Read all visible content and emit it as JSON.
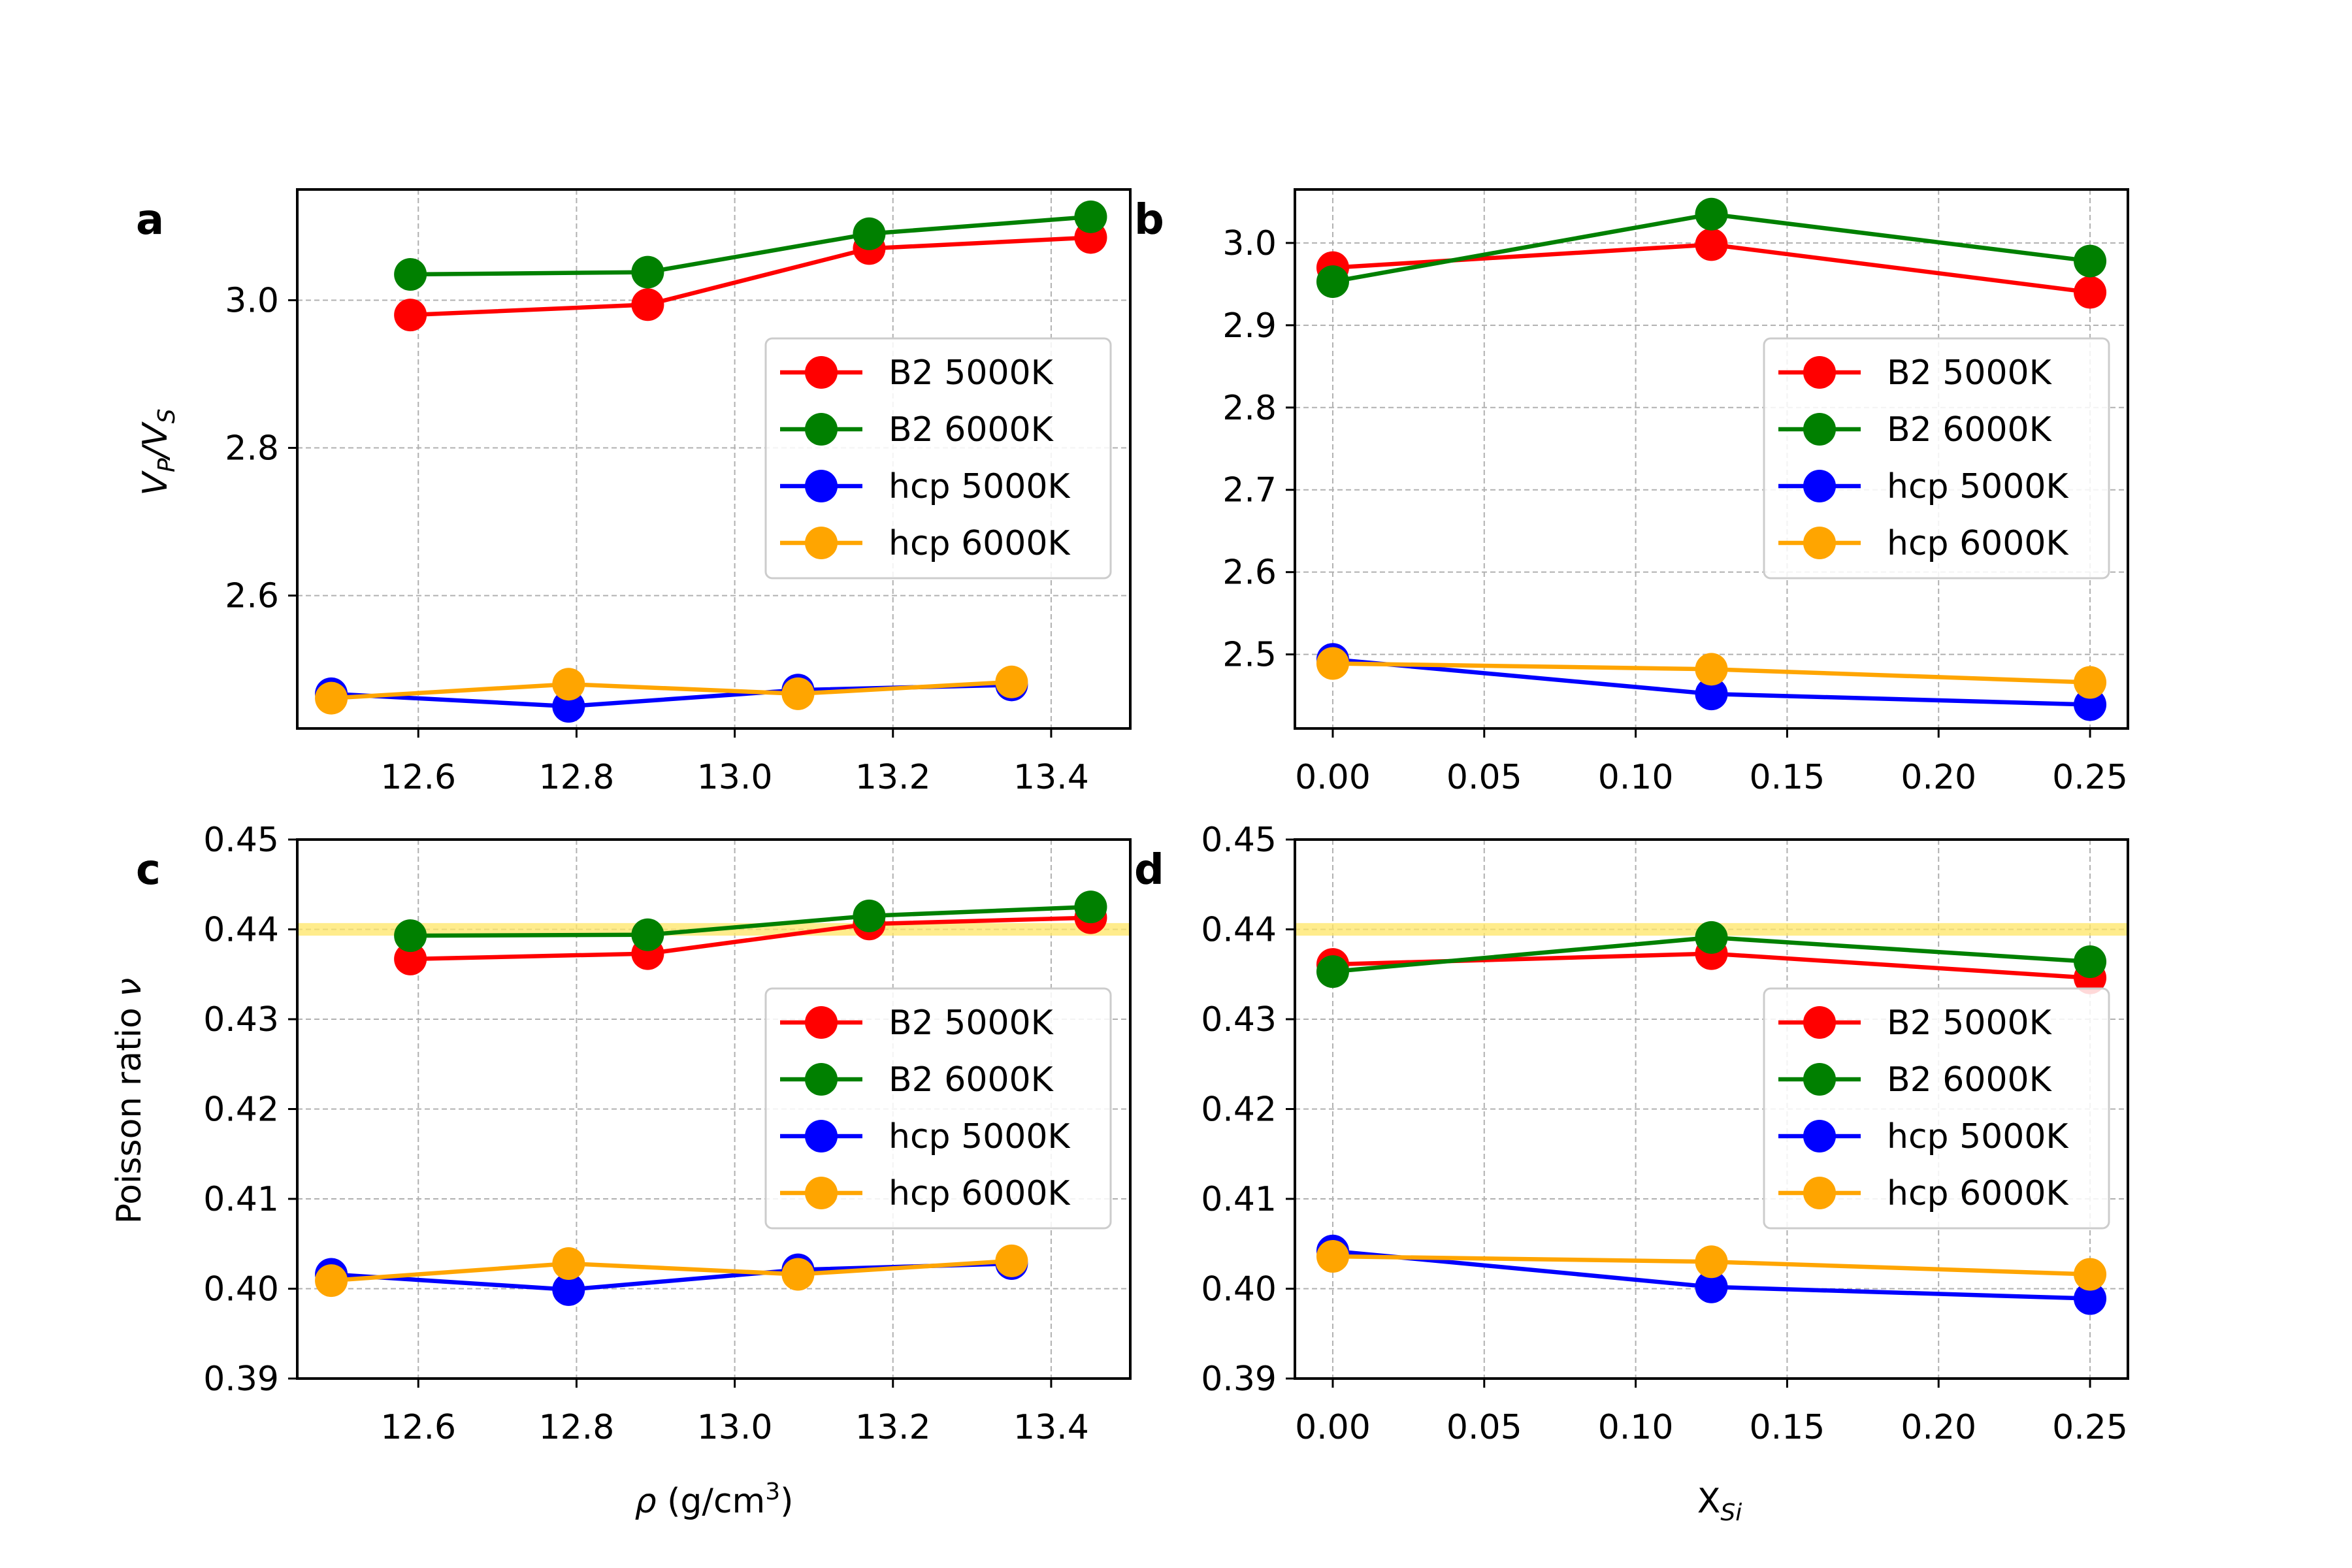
{
  "panel_labels": [
    "a",
    "b",
    "c",
    "d"
  ],
  "axis_labels": {
    "rho_prefix": "ρ",
    "rho_unit": " (g/cm",
    "rho_sup": "3",
    "rho_close": ")",
    "x_main": "X",
    "x_sub": "Si",
    "vpvs_main1": "V",
    "vpvs_sub1": "P",
    "vpvs_slash": "/V",
    "vpvs_sub2": "S",
    "poisson": "Poisson ratio ",
    "poisson_nu": "ν"
  },
  "colors": {
    "B2 5000K": "#ff0000",
    "B2 6000K": "#008000",
    "hcp 5000K": "#0000ff",
    "hcp 6000K": "#ffa500",
    "band": "#ffe666"
  },
  "chart_data": [
    {
      "panel": "a",
      "type": "line",
      "xlabel": "ρ (g/cm3)",
      "ylabel": "VP/VS",
      "xlim": [
        12.447,
        13.5
      ],
      "ylim": [
        2.42,
        3.15
      ],
      "xticks": [
        12.6,
        12.8,
        13.0,
        13.2,
        13.4
      ],
      "xtick_labels": [
        "12.6",
        "12.8",
        "13.0",
        "13.2",
        "13.4"
      ],
      "yticks": [
        2.6,
        2.8,
        3.0
      ],
      "ytick_labels": [
        "2.6",
        "2.8",
        "3.0"
      ],
      "grid": true,
      "legend": "center-right",
      "series": [
        {
          "name": "B2 5000K",
          "x": [
            12.59,
            12.89,
            13.17,
            13.45
          ],
          "y": [
            2.98,
            2.994,
            3.07,
            3.085
          ]
        },
        {
          "name": "B2 6000K",
          "x": [
            12.59,
            12.89,
            13.17,
            13.45
          ],
          "y": [
            3.035,
            3.038,
            3.09,
            3.113
          ]
        },
        {
          "name": "hcp 5000K",
          "x": [
            12.49,
            12.79,
            13.08,
            13.35
          ],
          "y": [
            2.467,
            2.45,
            2.472,
            2.479
          ]
        },
        {
          "name": "hcp 6000K",
          "x": [
            12.49,
            12.79,
            13.08,
            13.35
          ],
          "y": [
            2.461,
            2.48,
            2.467,
            2.483
          ]
        }
      ]
    },
    {
      "panel": "b",
      "type": "line",
      "xlabel": "XSi",
      "ylabel": "",
      "xlim": [
        -0.0125,
        0.2625
      ],
      "ylim": [
        2.41,
        3.065
      ],
      "xticks": [
        0.0,
        0.05,
        0.1,
        0.15,
        0.2,
        0.25
      ],
      "xtick_labels": [
        "0.00",
        "0.05",
        "0.10",
        "0.15",
        "0.20",
        "0.25"
      ],
      "yticks": [
        2.5,
        2.6,
        2.7,
        2.8,
        2.9,
        3.0
      ],
      "ytick_labels": [
        "2.5",
        "2.6",
        "2.7",
        "2.8",
        "2.9",
        "3.0"
      ],
      "grid": true,
      "legend": "center-right",
      "series": [
        {
          "name": "B2 5000K",
          "x": [
            0.0,
            0.125,
            0.25
          ],
          "y": [
            2.97,
            2.998,
            2.94
          ]
        },
        {
          "name": "B2 6000K",
          "x": [
            0.0,
            0.125,
            0.25
          ],
          "y": [
            2.953,
            3.035,
            2.978
          ]
        },
        {
          "name": "hcp 5000K",
          "x": [
            0.0,
            0.125,
            0.25
          ],
          "y": [
            2.494,
            2.452,
            2.439
          ]
        },
        {
          "name": "hcp 6000K",
          "x": [
            0.0,
            0.125,
            0.25
          ],
          "y": [
            2.489,
            2.482,
            2.466
          ]
        }
      ]
    },
    {
      "panel": "c",
      "type": "line",
      "xlabel": "ρ (g/cm3)",
      "ylabel": "Poisson ratio ν",
      "xlim": [
        12.447,
        13.5
      ],
      "ylim": [
        0.39,
        0.45
      ],
      "xticks": [
        12.6,
        12.8,
        13.0,
        13.2,
        13.4
      ],
      "xtick_labels": [
        "12.6",
        "12.8",
        "13.0",
        "13.2",
        "13.4"
      ],
      "yticks": [
        0.39,
        0.4,
        0.41,
        0.42,
        0.43,
        0.44,
        0.45
      ],
      "ytick_labels": [
        "0.39",
        "0.40",
        "0.41",
        "0.42",
        "0.43",
        "0.44",
        "0.45"
      ],
      "grid": true,
      "legend": "center-right",
      "band": [
        0.4393,
        0.4407
      ],
      "series": [
        {
          "name": "B2 5000K",
          "x": [
            12.59,
            12.89,
            13.17,
            13.45
          ],
          "y": [
            0.4367,
            0.4373,
            0.4406,
            0.4413
          ]
        },
        {
          "name": "B2 6000K",
          "x": [
            12.59,
            12.89,
            13.17,
            13.45
          ],
          "y": [
            0.4393,
            0.4394,
            0.4415,
            0.4425
          ]
        },
        {
          "name": "hcp 5000K",
          "x": [
            12.49,
            12.79,
            13.08,
            13.35
          ],
          "y": [
            0.4016,
            0.3999,
            0.4021,
            0.4028
          ]
        },
        {
          "name": "hcp 6000K",
          "x": [
            12.49,
            12.79,
            13.08,
            13.35
          ],
          "y": [
            0.4009,
            0.4028,
            0.4016,
            0.4031
          ]
        }
      ]
    },
    {
      "panel": "d",
      "type": "line",
      "xlabel": "XSi",
      "ylabel": "",
      "xlim": [
        -0.0125,
        0.2625
      ],
      "ylim": [
        0.39,
        0.45
      ],
      "xticks": [
        0.0,
        0.05,
        0.1,
        0.15,
        0.2,
        0.25
      ],
      "xtick_labels": [
        "0.00",
        "0.05",
        "0.10",
        "0.15",
        "0.20",
        "0.25"
      ],
      "yticks": [
        0.39,
        0.4,
        0.41,
        0.42,
        0.43,
        0.44,
        0.45
      ],
      "ytick_labels": [
        "0.39",
        "0.40",
        "0.41",
        "0.42",
        "0.43",
        "0.44",
        "0.45"
      ],
      "grid": true,
      "legend": "center-right",
      "band": [
        0.4393,
        0.4407
      ],
      "series": [
        {
          "name": "B2 5000K",
          "x": [
            0.0,
            0.125,
            0.25
          ],
          "y": [
            0.4361,
            0.4373,
            0.4346
          ]
        },
        {
          "name": "B2 6000K",
          "x": [
            0.0,
            0.125,
            0.25
          ],
          "y": [
            0.4353,
            0.4391,
            0.4364
          ]
        },
        {
          "name": "hcp 5000K",
          "x": [
            0.0,
            0.125,
            0.25
          ],
          "y": [
            0.4042,
            0.4002,
            0.3989
          ]
        },
        {
          "name": "hcp 6000K",
          "x": [
            0.0,
            0.125,
            0.25
          ],
          "y": [
            0.4036,
            0.403,
            0.4016
          ]
        }
      ]
    }
  ]
}
